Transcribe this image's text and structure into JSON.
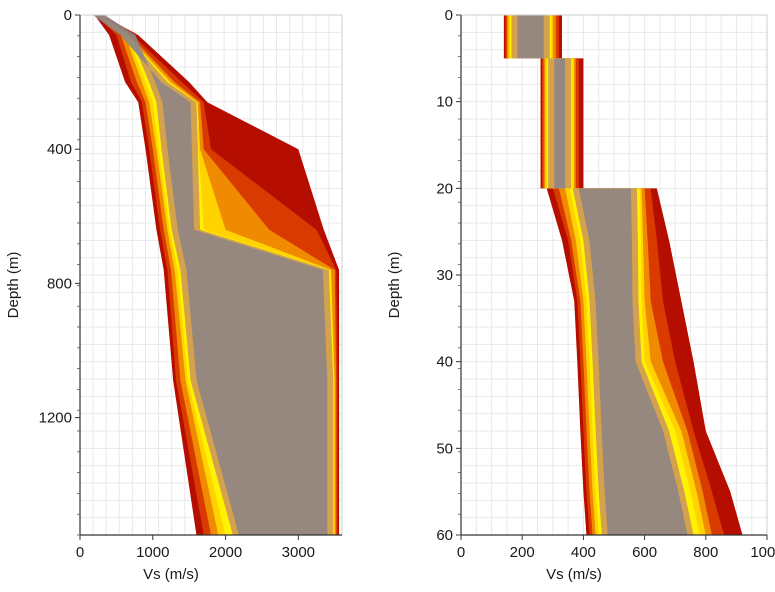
{
  "chart_data": [
    {
      "type": "area",
      "xlabel": "Vs (m/s)",
      "ylabel": "Depth (m)",
      "xlim": [
        0,
        3600
      ],
      "ylim": [
        1550,
        0
      ],
      "xticks": [
        0,
        1000,
        2000,
        3000
      ],
      "xtick_labels": [
        "0",
        "1000",
        "2000",
        "3000"
      ],
      "yticks": [
        0,
        400,
        800,
        1200
      ],
      "ytick_labels": [
        "0",
        "400",
        "800",
        "1200"
      ],
      "y_inverted": true,
      "grid": true,
      "colors": [
        "#b50d00",
        "#d83a00",
        "#f08a00",
        "#ffd200",
        "#fff200",
        "#d4a24c",
        "#b9926a",
        "#8f8584"
      ],
      "bands": [
        {
          "name": "",
          "depth": [
            0,
            60,
            200,
            260,
            400,
            640,
            760,
            1090,
            1550
          ],
          "vs_min": [
            200,
            400,
            620,
            800,
            900,
            1050,
            1150,
            1280,
            1600
          ],
          "vs_max": [
            300,
            800,
            1500,
            1750,
            3000,
            3350,
            3560,
            3560,
            3560
          ]
        },
        {
          "name": "",
          "depth": [
            0,
            60,
            200,
            260,
            400,
            640,
            760,
            1090,
            1550
          ],
          "vs_min": [
            220,
            500,
            700,
            850,
            950,
            1100,
            1200,
            1320,
            1700
          ],
          "vs_max": [
            280,
            720,
            1400,
            1700,
            1800,
            3250,
            3520,
            3540,
            3540
          ]
        },
        {
          "name": "",
          "depth": [
            0,
            60,
            200,
            260,
            400,
            640,
            760,
            1090,
            1550
          ],
          "vs_min": [
            240,
            560,
            780,
            900,
            1000,
            1150,
            1250,
            1380,
            1800
          ],
          "vs_max": [
            270,
            680,
            1300,
            1650,
            1700,
            2600,
            3500,
            3520,
            3520
          ]
        },
        {
          "name": "",
          "depth": [
            0,
            60,
            200,
            260,
            400,
            640,
            760,
            1090,
            1550
          ],
          "vs_min": [
            250,
            620,
            850,
            950,
            1050,
            1200,
            1300,
            1450,
            1900
          ],
          "vs_max": [
            265,
            650,
            1250,
            1620,
            1650,
            2000,
            3450,
            3500,
            3500
          ]
        },
        {
          "name": "",
          "depth": [
            0,
            60,
            200,
            260,
            400,
            640,
            760,
            1090,
            1550
          ],
          "vs_min": [
            255,
            650,
            900,
            1000,
            1080,
            1230,
            1340,
            1480,
            2000
          ],
          "vs_max": [
            262,
            640,
            1220,
            1610,
            1630,
            1700,
            3440,
            3490,
            3490
          ]
        },
        {
          "name": "",
          "depth": [
            0,
            60,
            200,
            260,
            400,
            640,
            760,
            1090,
            1550
          ],
          "vs_min": [
            258,
            680,
            950,
            1050,
            1120,
            1260,
            1380,
            1520,
            2100
          ],
          "vs_max": [
            260,
            635,
            1200,
            1600,
            1620,
            1650,
            3420,
            3480,
            3480
          ]
        }
      ]
    },
    {
      "type": "area",
      "xlabel": "Vs (m/s)",
      "ylabel": "Depth (m)",
      "xlim": [
        0,
        1000
      ],
      "ylim": [
        60,
        0
      ],
      "xticks": [
        0,
        200,
        400,
        600,
        800,
        1000
      ],
      "xtick_labels": [
        "0",
        "200",
        "400",
        "600",
        "800",
        "1000"
      ],
      "yticks": [
        0,
        10,
        20,
        30,
        40,
        50,
        60
      ],
      "ytick_labels": [
        "0",
        "10",
        "20",
        "30",
        "40",
        "50",
        "60"
      ],
      "y_inverted": true,
      "grid": true,
      "colors": [
        "#b50d00",
        "#d83a00",
        "#f08a00",
        "#ffd200",
        "#fff200",
        "#d4a24c",
        "#b9926a",
        "#8f8584"
      ],
      "bands": [
        {
          "name": "",
          "depth": [
            0,
            5,
            5.01,
            20,
            20.01,
            26,
            33,
            40,
            48,
            55,
            60
          ],
          "vs_min": [
            140,
            140,
            260,
            260,
            280,
            330,
            370,
            380,
            390,
            400,
            410
          ],
          "vs_max": [
            330,
            330,
            400,
            400,
            640,
            680,
            720,
            760,
            800,
            880,
            920
          ]
        },
        {
          "name": "",
          "depth": [
            0,
            5,
            5.01,
            20,
            20.01,
            26,
            33,
            40,
            48,
            55,
            60
          ],
          "vs_min": [
            145,
            145,
            265,
            265,
            300,
            350,
            380,
            390,
            400,
            410,
            420
          ],
          "vs_max": [
            320,
            320,
            385,
            385,
            620,
            640,
            660,
            700,
            760,
            820,
            860
          ]
        },
        {
          "name": "",
          "depth": [
            0,
            5,
            5.01,
            20,
            20.01,
            26,
            33,
            40,
            48,
            55,
            60
          ],
          "vs_min": [
            150,
            150,
            270,
            270,
            320,
            360,
            390,
            400,
            410,
            420,
            430
          ],
          "vs_max": [
            310,
            310,
            375,
            375,
            600,
            610,
            620,
            660,
            740,
            790,
            820
          ]
        },
        {
          "name": "",
          "depth": [
            0,
            5,
            5.01,
            20,
            20.01,
            26,
            33,
            40,
            48,
            55,
            60
          ],
          "vs_min": [
            155,
            155,
            275,
            275,
            340,
            375,
            400,
            410,
            420,
            430,
            440
          ],
          "vs_max": [
            300,
            300,
            370,
            370,
            590,
            595,
            600,
            620,
            720,
            770,
            800
          ]
        },
        {
          "name": "",
          "depth": [
            0,
            5,
            5.01,
            20,
            20.01,
            26,
            33,
            40,
            48,
            55,
            60
          ],
          "vs_min": [
            160,
            160,
            280,
            280,
            355,
            390,
            410,
            420,
            430,
            440,
            450
          ],
          "vs_max": [
            295,
            295,
            365,
            365,
            585,
            588,
            590,
            600,
            700,
            750,
            780
          ]
        },
        {
          "name": "",
          "depth": [
            0,
            5,
            5.01,
            20,
            20.01,
            26,
            33,
            40,
            48,
            55,
            60
          ],
          "vs_min": [
            165,
            165,
            285,
            285,
            365,
            400,
            420,
            430,
            440,
            450,
            460
          ],
          "vs_max": [
            290,
            290,
            360,
            360,
            575,
            578,
            580,
            590,
            680,
            730,
            760
          ]
        }
      ]
    }
  ]
}
